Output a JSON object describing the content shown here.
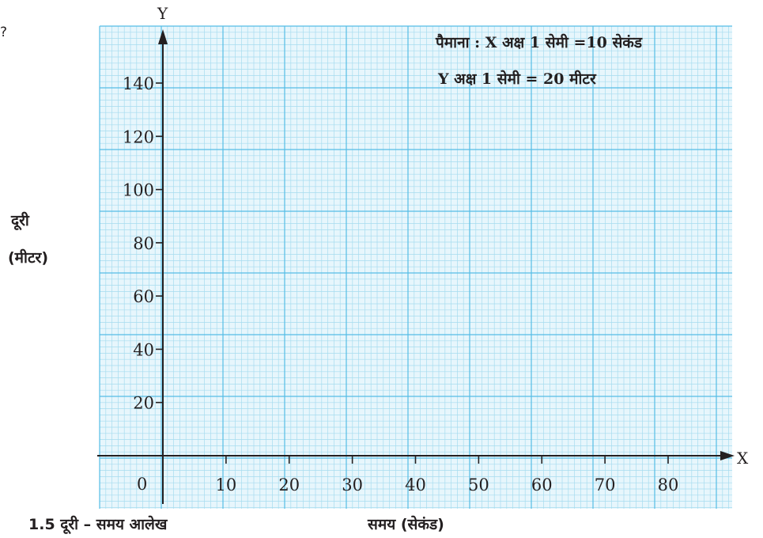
{
  "corner_mark": "?",
  "scale": {
    "line1": "पैमाना : X अक्ष 1 सेमी =10 सेकंड",
    "line2": "Y अक्ष 1 सेमी = 20 मीटर"
  },
  "y_axis_text": {
    "line1": "दूरी",
    "line2": "(मीटर)"
  },
  "caption": "1.5 दूरी – समय आलेख",
  "chart_data": {
    "type": "line",
    "series": [],
    "xlabel": "समय (सेकंड)",
    "ylabel": "दूरी (मीटर)",
    "x_axis_name": "X",
    "y_axis_name": "Y",
    "origin_label": "0",
    "x_ticks": [
      10,
      20,
      30,
      40,
      50,
      60,
      70,
      80
    ],
    "y_ticks": [
      20,
      40,
      60,
      80,
      100,
      120,
      140
    ],
    "xlim": [
      0,
      80
    ],
    "ylim": [
      0,
      140
    ],
    "grid": true,
    "colors": {
      "grid_minor": "#a6dcef",
      "grid_major": "#55bde6",
      "background": "#e7f6fc",
      "axis": "#231f20"
    }
  }
}
